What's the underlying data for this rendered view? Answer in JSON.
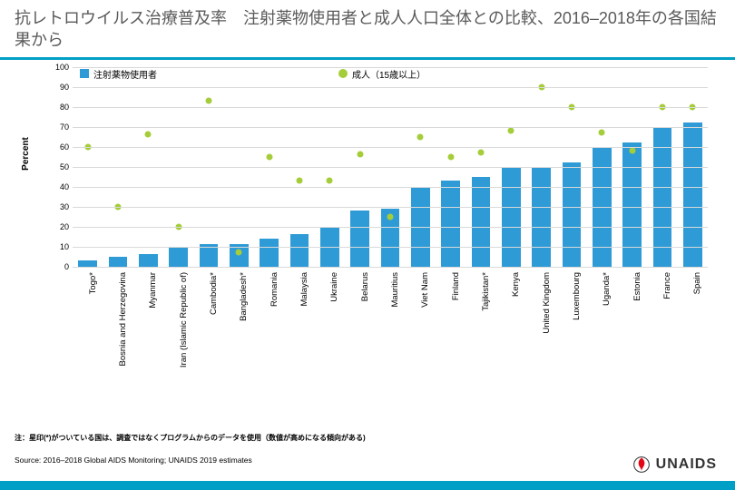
{
  "title": "抗レトロウイルス治療普及率　注射薬物使用者と成人人口全体との比較、2016–2018年の各国結果から",
  "note": "注：星印(*)がついている国は、調査ではなくプログラムからのデータを使用（数値が高めになる傾向がある)",
  "source": "Source: 2016–2018 Global AIDS Monitoring; UNAIDS 2019 estimates",
  "yAxisLabel": "Percent",
  "chart": {
    "type": "bar-with-scatter",
    "ylim": [
      0,
      100
    ],
    "ytick_step": 10,
    "bar_color": "#2e9bd6",
    "dot_color": "#a5cd39",
    "grid_color": "#d9d9d9",
    "background_color": "#ffffff",
    "bar_width": 0.62,
    "legend": [
      {
        "label": "注射薬物使用者",
        "color": "#2e9bd6",
        "shape": "square"
      },
      {
        "label": "成人（15歳以上）",
        "color": "#a5cd39",
        "shape": "circle"
      }
    ],
    "categories": [
      "Togo*",
      "Bosnia and Herzegovina",
      "Myanmar",
      "Iran (Islamic Republic of)",
      "Cambodia*",
      "Bangladesh*",
      "Romania",
      "Malaysia",
      "Ukraine",
      "Belarus",
      "Mauritius",
      "Viet Nam",
      "Finland",
      "Tajikistan*",
      "Kenya",
      "United Kingdom",
      "Luxembourg",
      "Uganda*",
      "Estonia",
      "France",
      "Spain"
    ],
    "bars": [
      3,
      5,
      6,
      10,
      11,
      11,
      14,
      16,
      20,
      28,
      29,
      40,
      43,
      45,
      50,
      50,
      52,
      60,
      62,
      70,
      72
    ],
    "points": [
      60,
      30,
      66,
      20,
      83,
      7,
      55,
      43,
      43,
      56,
      25,
      65,
      55,
      57,
      68,
      90,
      80,
      67,
      58,
      80,
      80
    ]
  },
  "brand": {
    "name": "UNAIDS",
    "accent": "#e30613"
  }
}
